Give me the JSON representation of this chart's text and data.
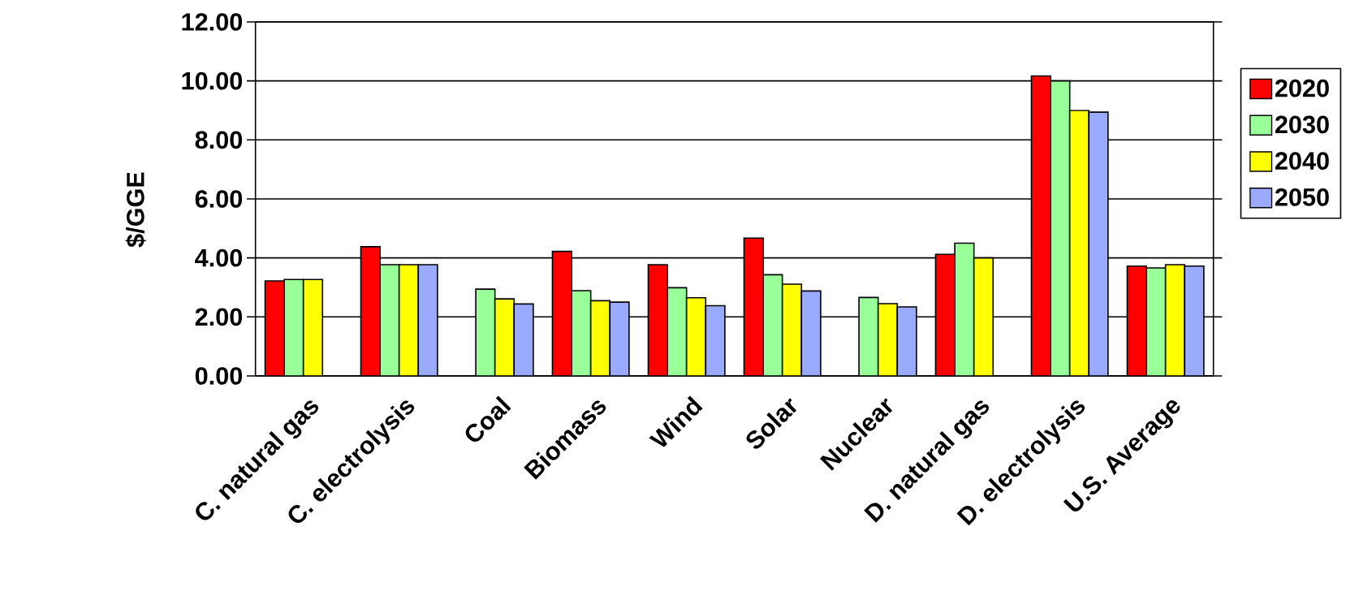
{
  "chart_data": {
    "type": "bar",
    "ylabel": "$/GGE",
    "categories": [
      "C. natural gas",
      "C. electrolysis",
      "Coal",
      "Biomass",
      "Wind",
      "Solar",
      "Nuclear",
      "D. natural gas",
      "D. electrolysis",
      "U.S. Average"
    ],
    "series": [
      {
        "name": "2020",
        "color": "#ff0000",
        "values": [
          3.22,
          4.38,
          null,
          4.22,
          3.77,
          4.67,
          null,
          4.12,
          10.17,
          3.72
        ]
      },
      {
        "name": "2030",
        "color": "#99ff99",
        "values": [
          3.27,
          3.77,
          2.94,
          2.89,
          2.99,
          3.43,
          2.66,
          4.5,
          10.0,
          3.66
        ]
      },
      {
        "name": "2040",
        "color": "#ffff00",
        "values": [
          3.27,
          3.77,
          2.61,
          2.55,
          2.65,
          3.11,
          2.45,
          4.0,
          9.0,
          3.77
        ]
      },
      {
        "name": "2050",
        "color": "#99aaff",
        "values": [
          null,
          3.77,
          2.44,
          2.5,
          2.38,
          2.88,
          2.34,
          null,
          8.94,
          3.72
        ]
      }
    ],
    "ylim": [
      0,
      12
    ],
    "yticks": [
      {
        "value": 0,
        "label": "0.00"
      },
      {
        "value": 2,
        "label": "2.00"
      },
      {
        "value": 4,
        "label": "4.00"
      },
      {
        "value": 6,
        "label": "6.00"
      },
      {
        "value": 8,
        "label": "8.00"
      },
      {
        "value": 10,
        "label": "10.00"
      },
      {
        "value": 12,
        "label": "12.00"
      }
    ],
    "grid": "y",
    "legend": "right"
  }
}
